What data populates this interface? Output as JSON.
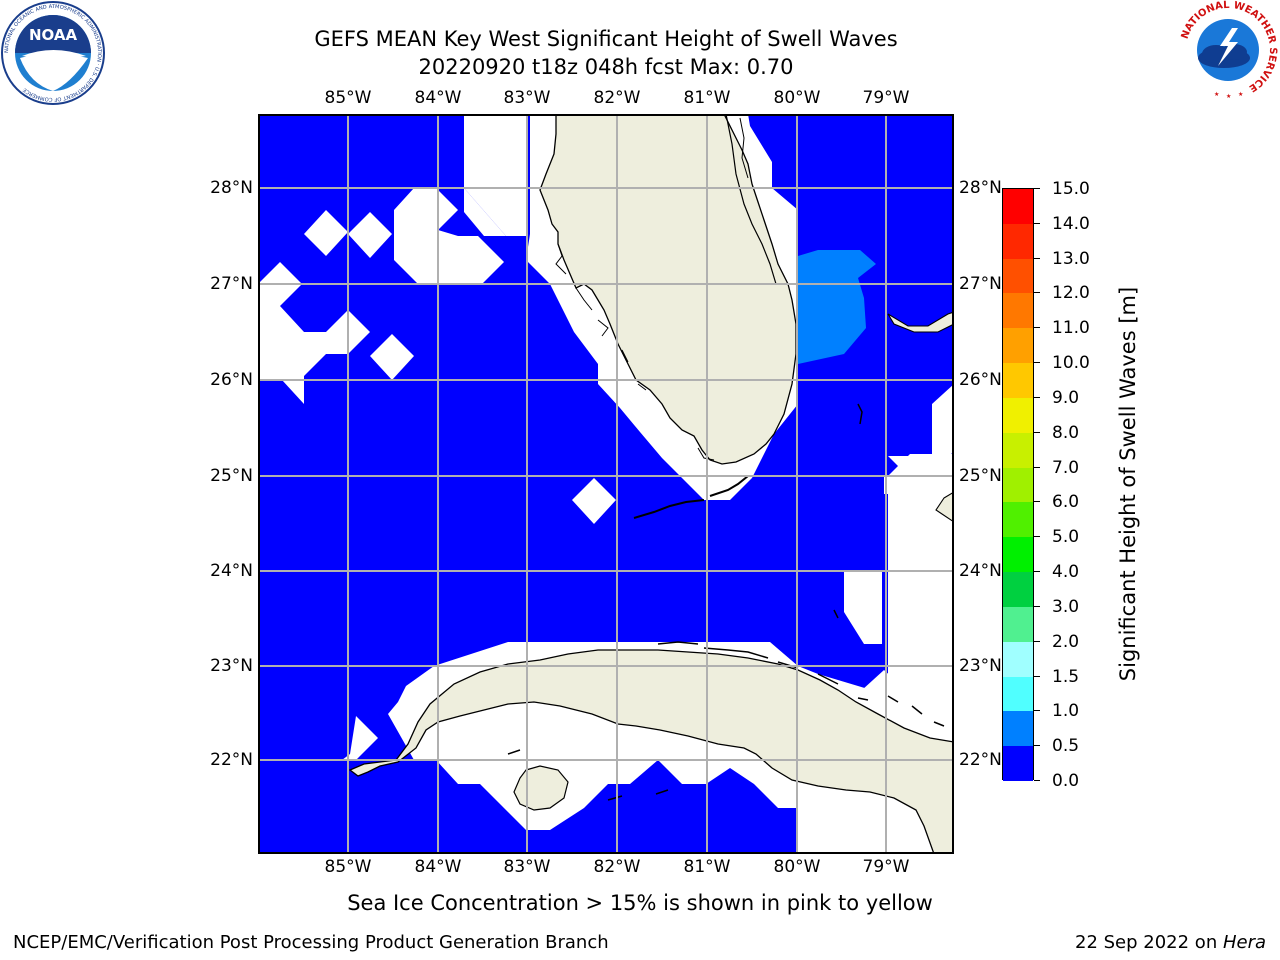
{
  "title": {
    "line1": "GEFS MEAN Key West Significant Height of Swell Waves",
    "line2": "20220920 t18z 048h fcst   Max: 0.70"
  },
  "map": {
    "lon_ticks": [
      "85°W",
      "84°W",
      "83°W",
      "82°W",
      "81°W",
      "80°W",
      "79°W"
    ],
    "lat_ticks": [
      "28°N",
      "27°N",
      "26°N",
      "25°N",
      "24°N",
      "23°N",
      "22°N"
    ],
    "lon_values": [
      -85,
      -84,
      -83,
      -82,
      -81,
      -80,
      -79
    ],
    "lat_values": [
      28,
      27,
      26,
      25,
      24,
      23,
      22
    ],
    "lon_range": [
      -86,
      -78.3
    ],
    "lat_range": [
      21,
      28.8
    ],
    "ocean_color": "#0000ff",
    "land_color": "#eeeedd",
    "nodata_color": "#ffffff",
    "swell_region_color": "#0080ff"
  },
  "colorbar": {
    "title": "Significant Height of Swell Waves [m]",
    "labels": [
      "15.0",
      "14.0",
      "13.0",
      "12.0",
      "11.0",
      "10.0",
      "9.0",
      "8.0",
      "7.0",
      "6.0",
      "5.0",
      "4.0",
      "3.0",
      "2.0",
      "1.5",
      "1.0",
      "0.5",
      "0.0"
    ],
    "colors": [
      "#ff0000",
      "#ff2800",
      "#ff5000",
      "#ff7800",
      "#ffa000",
      "#ffc800",
      "#f0f000",
      "#c8f000",
      "#a0f000",
      "#50f000",
      "#00f000",
      "#00d040",
      "#50f090",
      "#a0ffff",
      "#50ffff",
      "#00ffff",
      "#0080ff",
      "#0000ff"
    ]
  },
  "note": "Sea Ice Concentration > 15% is shown in pink to yellow",
  "footer": {
    "left": "NCEP/EMC/Verification Post Processing Product Generation Branch",
    "right_date": "22 Sep 2022 on ",
    "right_host": "Hera"
  },
  "logos": {
    "noaa_text": "NOAA",
    "noaa_ring_text": "NATIONAL OCEANIC AND ATMOSPHERIC ADMINISTRATION · U.S. DEPARTMENT OF COMMERCE",
    "nws_ring_text": "NATIONAL WEATHER SERVICE"
  }
}
